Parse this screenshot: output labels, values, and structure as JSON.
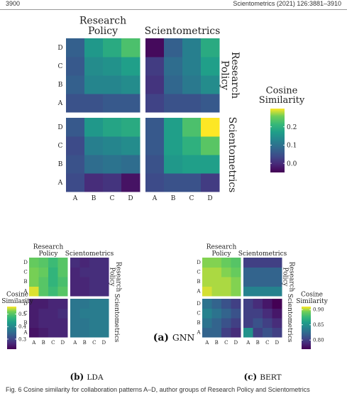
{
  "header": {
    "left": "3900",
    "right": "Scientometrics (2021) 126:3881–3910"
  },
  "footer_caption": "Fig. 6 Cosine similarity for collaboration patterns A–D, author groups of Research Policy and Scientometrics",
  "chart_data": [
    {
      "id": "gnn",
      "type": "heatmap",
      "caption_letter": "(a)",
      "caption_text": "GNN",
      "col_groups": [
        "Research Policy",
        "Scientometrics"
      ],
      "row_groups": [
        "Research Policy",
        "Scientometrics"
      ],
      "tick_labels": [
        "A",
        "B",
        "C",
        "D"
      ],
      "legend_title": "Cosine Similarity",
      "legend_ticks": [
        0.0,
        0.1,
        0.2
      ],
      "value_range": [
        -0.05,
        0.3
      ],
      "panels": {
        "rp_rp": [
          [
            0.05,
            0.05,
            0.06,
            0.06
          ],
          [
            0.07,
            0.13,
            0.13,
            0.14
          ],
          [
            0.06,
            0.14,
            0.15,
            0.17
          ],
          [
            0.07,
            0.16,
            0.19,
            0.23
          ]
        ],
        "rp_sc": [
          [
            0.03,
            0.05,
            0.05,
            0.06
          ],
          [
            0.01,
            0.08,
            0.11,
            0.14
          ],
          [
            0.02,
            0.09,
            0.12,
            0.17
          ],
          [
            -0.04,
            0.07,
            0.12,
            0.19
          ]
        ],
        "sc_rp": [
          [
            0.04,
            0.0,
            0.01,
            -0.03
          ],
          [
            0.05,
            0.09,
            0.1,
            0.09
          ],
          [
            0.04,
            0.12,
            0.13,
            0.14
          ],
          [
            0.06,
            0.16,
            0.18,
            0.19
          ]
        ],
        "sc_sc": [
          [
            0.04,
            0.05,
            0.05,
            0.02
          ],
          [
            0.05,
            0.16,
            0.17,
            0.17
          ],
          [
            0.06,
            0.17,
            0.2,
            0.24
          ],
          [
            0.06,
            0.17,
            0.23,
            0.31
          ]
        ]
      }
    },
    {
      "id": "lda",
      "type": "heatmap",
      "caption_letter": "(b)",
      "caption_text": "LDA",
      "col_groups": [
        "Research Policy",
        "Scientometrics"
      ],
      "row_groups": [
        "Research Policy",
        "Scientometrics"
      ],
      "tick_labels": [
        "A",
        "B",
        "C",
        "D"
      ],
      "legend_title": "Cosine Similarity",
      "legend_ticks": [
        0.3,
        0.4,
        0.5
      ],
      "value_range": [
        0.22,
        0.56
      ],
      "panels": {
        "rp_rp": [
          [
            0.55,
            0.5,
            0.48,
            0.5
          ],
          [
            0.52,
            0.5,
            0.47,
            0.49
          ],
          [
            0.52,
            0.51,
            0.47,
            0.5
          ],
          [
            0.51,
            0.5,
            0.48,
            0.5
          ]
        ],
        "rp_sc": [
          [
            0.26,
            0.26,
            0.27,
            0.27
          ],
          [
            0.26,
            0.26,
            0.27,
            0.27
          ],
          [
            0.26,
            0.27,
            0.27,
            0.27
          ],
          [
            0.27,
            0.26,
            0.27,
            0.27
          ]
        ],
        "sc_rp": [
          [
            0.24,
            0.25,
            0.26,
            0.26
          ],
          [
            0.25,
            0.26,
            0.26,
            0.26
          ],
          [
            0.25,
            0.26,
            0.26,
            0.27
          ],
          [
            0.25,
            0.25,
            0.26,
            0.26
          ]
        ],
        "sc_sc": [
          [
            0.37,
            0.37,
            0.38,
            0.38
          ],
          [
            0.37,
            0.37,
            0.38,
            0.38
          ],
          [
            0.37,
            0.38,
            0.38,
            0.38
          ],
          [
            0.37,
            0.37,
            0.38,
            0.38
          ]
        ]
      }
    },
    {
      "id": "bert",
      "type": "heatmap",
      "caption_letter": "(c)",
      "caption_text": "BERT",
      "col_groups": [
        "Research Policy",
        "Scientometrics"
      ],
      "row_groups": [
        "Research Policy",
        "Scientometrics"
      ],
      "tick_labels": [
        "A",
        "B",
        "C",
        "D"
      ],
      "legend_title": "Cosine Similarity",
      "legend_ticks": [
        0.8,
        0.85,
        0.9
      ],
      "value_range": [
        0.77,
        0.91
      ],
      "panels": {
        "rp_rp": [
          [
            0.905,
            0.9,
            0.9,
            0.895
          ],
          [
            0.9,
            0.9,
            0.9,
            0.895
          ],
          [
            0.9,
            0.9,
            0.895,
            0.89
          ],
          [
            0.895,
            0.895,
            0.89,
            0.885
          ]
        ],
        "rp_sc": [
          [
            0.84,
            0.84,
            0.84,
            0.84
          ],
          [
            0.82,
            0.82,
            0.82,
            0.82
          ],
          [
            0.82,
            0.82,
            0.82,
            0.82
          ],
          [
            0.8,
            0.8,
            0.8,
            0.8
          ]
        ],
        "sc_rp": [
          [
            0.82,
            0.82,
            0.8,
            0.79
          ],
          [
            0.83,
            0.82,
            0.81,
            0.8
          ],
          [
            0.84,
            0.83,
            0.82,
            0.81
          ],
          [
            0.83,
            0.82,
            0.81,
            0.8
          ]
        ],
        "sc_sc": [
          [
            0.85,
            0.8,
            0.81,
            0.8
          ],
          [
            0.8,
            0.81,
            0.8,
            0.79
          ],
          [
            0.8,
            0.8,
            0.79,
            0.78
          ],
          [
            0.8,
            0.79,
            0.78,
            0.77
          ]
        ]
      }
    }
  ]
}
